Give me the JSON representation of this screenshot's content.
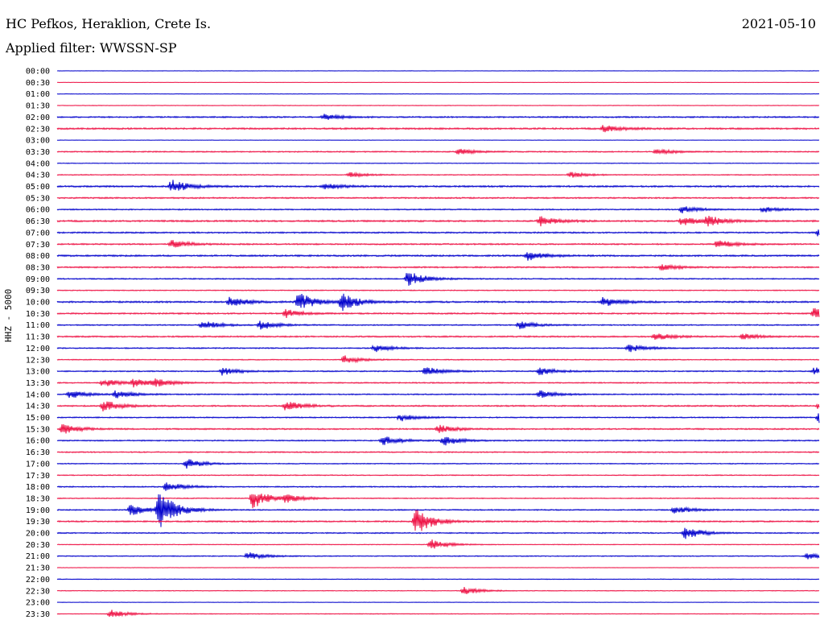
{
  "header": {
    "station": "HC Pefkos, Heraklion, Crete Is.",
    "filter": "Applied filter: WWSSN-SP",
    "date": "2021-05-10"
  },
  "axis": {
    "ylabel": "HHZ - 5000"
  },
  "colors": {
    "even_trace": "#0000cc",
    "odd_trace": "#ee1144",
    "text": "#000000",
    "background": "#ffffff"
  },
  "chart_data": {
    "type": "line",
    "title": "",
    "row_labels": [
      "00:00",
      "00:30",
      "01:00",
      "01:30",
      "02:00",
      "02:30",
      "03:00",
      "03:30",
      "04:00",
      "04:30",
      "05:00",
      "05:30",
      "06:00",
      "06:30",
      "07:00",
      "07:30",
      "08:00",
      "08:30",
      "09:00",
      "09:30",
      "10:00",
      "10:30",
      "11:00",
      "11:30",
      "12:00",
      "12:30",
      "13:00",
      "13:30",
      "14:00",
      "14:30",
      "15:00",
      "15:30",
      "16:00",
      "16:30",
      "17:00",
      "17:30",
      "18:00",
      "18:30",
      "19:00",
      "19:30",
      "20:00",
      "20:30",
      "21:00",
      "21:30",
      "22:00",
      "22:30",
      "23:00",
      "23:30"
    ],
    "row_minutes": 30,
    "x_range": [
      0,
      30
    ],
    "grid": false,
    "legend": "none",
    "noise_levels": [
      0.2,
      0.15,
      0.2,
      0.25,
      0.6,
      0.7,
      0.2,
      0.5,
      0.3,
      0.4,
      0.7,
      0.6,
      0.5,
      0.7,
      0.6,
      0.6,
      0.7,
      0.6,
      0.5,
      0.4,
      0.7,
      0.6,
      0.5,
      0.6,
      0.5,
      0.4,
      0.5,
      0.5,
      0.5,
      0.6,
      0.5,
      0.6,
      0.5,
      0.5,
      0.4,
      0.4,
      0.5,
      0.4,
      0.5,
      0.6,
      0.5,
      0.3,
      0.4,
      0.2,
      0.3,
      0.3,
      0.2,
      0.3
    ],
    "events": [
      {
        "row": 4,
        "minute": 10.5,
        "amplitude": 3
      },
      {
        "row": 5,
        "minute": 21.5,
        "amplitude": 4
      },
      {
        "row": 7,
        "minute": 15.8,
        "amplitude": 3
      },
      {
        "row": 7,
        "minute": 23.6,
        "amplitude": 3
      },
      {
        "row": 9,
        "minute": 11.5,
        "amplitude": 2.5
      },
      {
        "row": 9,
        "minute": 20.2,
        "amplitude": 3
      },
      {
        "row": 10,
        "minute": 4.5,
        "amplitude": 7
      },
      {
        "row": 10,
        "minute": 10.5,
        "amplitude": 3
      },
      {
        "row": 12,
        "minute": 24.6,
        "amplitude": 4
      },
      {
        "row": 12,
        "minute": 27.8,
        "amplitude": 3
      },
      {
        "row": 13,
        "minute": 19.0,
        "amplitude": 5
      },
      {
        "row": 13,
        "minute": 24.6,
        "amplitude": 5
      },
      {
        "row": 13,
        "minute": 25.6,
        "amplitude": 5
      },
      {
        "row": 14,
        "minute": 30.0,
        "amplitude": 6
      },
      {
        "row": 15,
        "minute": 4.5,
        "amplitude": 4
      },
      {
        "row": 15,
        "minute": 26.0,
        "amplitude": 5
      },
      {
        "row": 16,
        "minute": 18.5,
        "amplitude": 5
      },
      {
        "row": 17,
        "minute": 23.8,
        "amplitude": 3
      },
      {
        "row": 18,
        "minute": 13.8,
        "amplitude": 8
      },
      {
        "row": 20,
        "minute": 6.8,
        "amplitude": 5
      },
      {
        "row": 20,
        "minute": 9.5,
        "amplitude": 9
      },
      {
        "row": 20,
        "minute": 11.2,
        "amplitude": 9
      },
      {
        "row": 20,
        "minute": 21.5,
        "amplitude": 5
      },
      {
        "row": 21,
        "minute": 9.0,
        "amplitude": 4
      },
      {
        "row": 21,
        "minute": 29.8,
        "amplitude": 6
      },
      {
        "row": 22,
        "minute": 5.7,
        "amplitude": 5
      },
      {
        "row": 22,
        "minute": 8.0,
        "amplitude": 5
      },
      {
        "row": 22,
        "minute": 18.2,
        "amplitude": 4
      },
      {
        "row": 23,
        "minute": 23.5,
        "amplitude": 4
      },
      {
        "row": 23,
        "minute": 27.0,
        "amplitude": 3
      },
      {
        "row": 24,
        "minute": 12.5,
        "amplitude": 4
      },
      {
        "row": 24,
        "minute": 22.5,
        "amplitude": 4
      },
      {
        "row": 25,
        "minute": 11.3,
        "amplitude": 4
      },
      {
        "row": 26,
        "minute": 6.5,
        "amplitude": 4
      },
      {
        "row": 26,
        "minute": 14.5,
        "amplitude": 5
      },
      {
        "row": 26,
        "minute": 19.0,
        "amplitude": 4
      },
      {
        "row": 26,
        "minute": 29.8,
        "amplitude": 4
      },
      {
        "row": 27,
        "minute": 1.8,
        "amplitude": 4
      },
      {
        "row": 27,
        "minute": 3.0,
        "amplitude": 4
      },
      {
        "row": 27,
        "minute": 3.8,
        "amplitude": 4
      },
      {
        "row": 28,
        "minute": 0.5,
        "amplitude": 4
      },
      {
        "row": 28,
        "minute": 2.3,
        "amplitude": 4
      },
      {
        "row": 28,
        "minute": 19.0,
        "amplitude": 4
      },
      {
        "row": 29,
        "minute": 1.8,
        "amplitude": 6
      },
      {
        "row": 29,
        "minute": 9.0,
        "amplitude": 5
      },
      {
        "row": 29,
        "minute": 30.0,
        "amplitude": 5
      },
      {
        "row": 30,
        "minute": 13.5,
        "amplitude": 4
      },
      {
        "row": 30,
        "minute": 30.0,
        "amplitude": 7
      },
      {
        "row": 31,
        "minute": 0.2,
        "amplitude": 5
      },
      {
        "row": 31,
        "minute": 15.0,
        "amplitude": 4
      },
      {
        "row": 32,
        "minute": 12.8,
        "amplitude": 5
      },
      {
        "row": 32,
        "minute": 15.2,
        "amplitude": 5
      },
      {
        "row": 34,
        "minute": 5.1,
        "amplitude": 5
      },
      {
        "row": 36,
        "minute": 4.3,
        "amplitude": 5
      },
      {
        "row": 37,
        "minute": 7.7,
        "amplitude": 10
      },
      {
        "row": 37,
        "minute": 9.0,
        "amplitude": 4
      },
      {
        "row": 38,
        "minute": 2.9,
        "amplitude": 6
      },
      {
        "row": 38,
        "minute": 4.0,
        "amplitude": 20
      },
      {
        "row": 38,
        "minute": 24.3,
        "amplitude": 4
      },
      {
        "row": 39,
        "minute": 14.1,
        "amplitude": 14
      },
      {
        "row": 40,
        "minute": 24.7,
        "amplitude": 7
      },
      {
        "row": 41,
        "minute": 14.7,
        "amplitude": 5
      },
      {
        "row": 42,
        "minute": 7.5,
        "amplitude": 4
      },
      {
        "row": 42,
        "minute": 29.5,
        "amplitude": 3
      },
      {
        "row": 45,
        "minute": 16.0,
        "amplitude": 4
      },
      {
        "row": 47,
        "minute": 2.1,
        "amplitude": 4
      }
    ]
  }
}
